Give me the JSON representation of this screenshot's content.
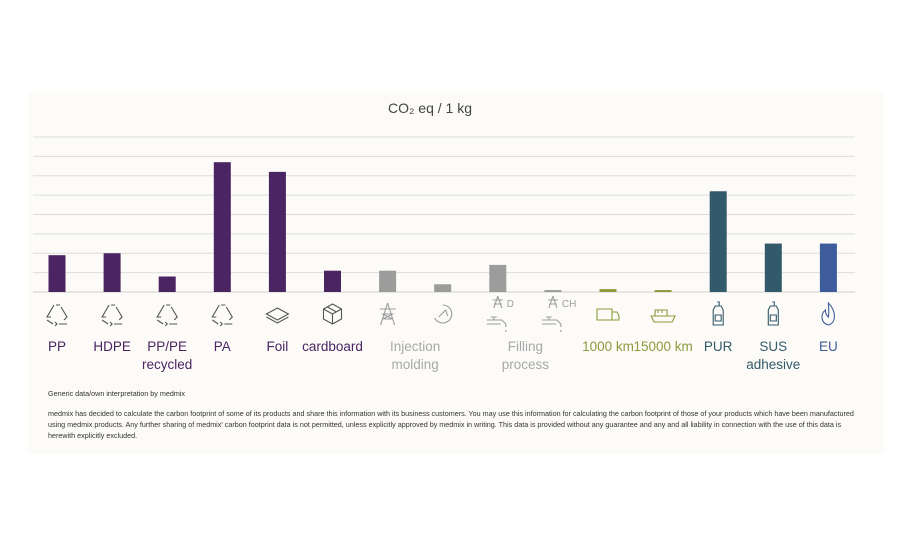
{
  "chart_data": {
    "type": "bar",
    "title": "CO₂ eq / 1 kg",
    "categories": [
      "PP",
      "HDPE",
      "PP/PE recycled",
      "PA",
      "Foil",
      "cardboard",
      "Injection molding",
      null,
      "Filling process",
      null,
      "1000 km",
      "15000 km",
      "PUR",
      "SUS adhesive",
      "EU"
    ],
    "sublabels": [
      null,
      null,
      null,
      null,
      null,
      null,
      null,
      null,
      "D",
      "CH",
      null,
      null,
      null,
      null,
      null
    ],
    "values": [
      1.9,
      2.0,
      0.8,
      6.7,
      6.2,
      1.1,
      1.1,
      0.4,
      1.4,
      0.1,
      0.15,
      0.1,
      5.2,
      2.5,
      2.5
    ],
    "colors": [
      "#4b2462",
      "#4b2462",
      "#4b2462",
      "#4b2462",
      "#4b2462",
      "#4b2462",
      "#9c9c9c",
      "#9c9c9c",
      "#9c9c9c",
      "#9c9c9c",
      "#8c9a3c",
      "#8c9a3c",
      "#335a6a",
      "#335a6a",
      "#3e5b9c"
    ],
    "ylim": [
      0,
      8
    ],
    "yticks": [
      0,
      1,
      2,
      3,
      4,
      5,
      6,
      7,
      8
    ],
    "grid": true,
    "source": "Generic data/own interpretation by medmix",
    "disclaimer": "medmix has decided to calculate the carbon footprint of some of its products and share this information with its business customers. You may use this information for calculating the carbon footprint of those of your products which have been manufactured using medmix products. Any further sharing of medmix' carbon footprint data is not permitted, unless explicitly approved by medmix in writing. This data is provided without any guarantee and any and all liability in connection with the use of this data is herewith explicitly excluded."
  }
}
